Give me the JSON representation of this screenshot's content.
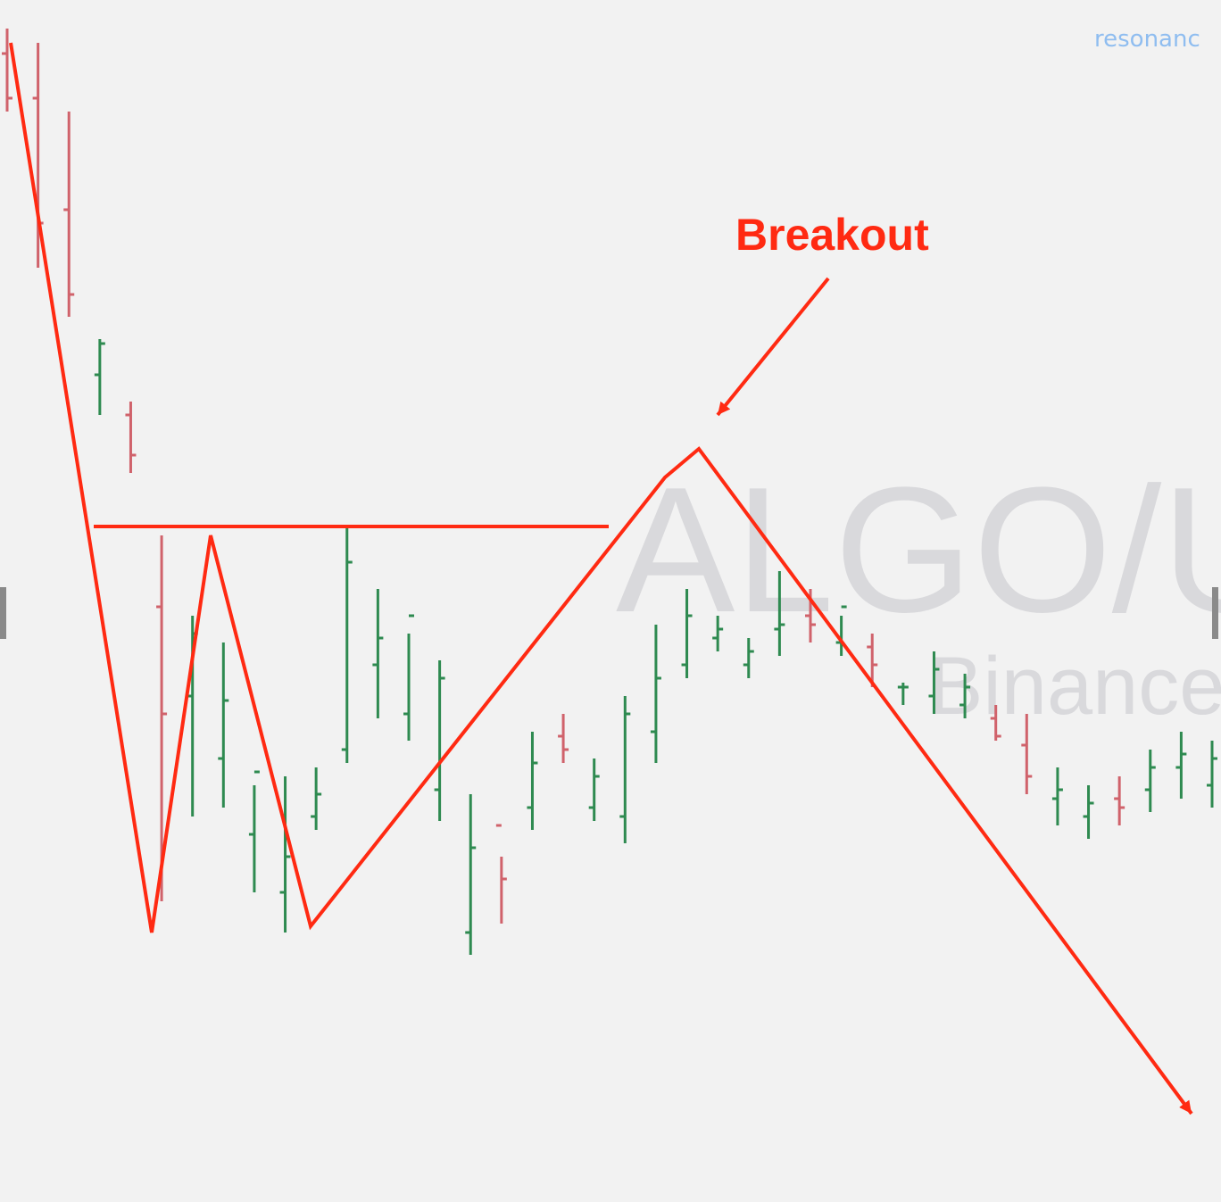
{
  "brand": {
    "text": "resonanc",
    "color": "#8fbdf0"
  },
  "watermark": {
    "ticker": "ALGO/U",
    "exchange": "Binance",
    "color": "#d9d9dc"
  },
  "annotation": {
    "label": "Breakout",
    "color": "#ff2a12"
  },
  "colors": {
    "up": "#2e8a50",
    "down": "#d0626b",
    "drawing": "#ff2a12",
    "background": "#f2f2f2"
  },
  "chart_data": {
    "type": "ohlc",
    "title": "",
    "xlabel": "",
    "ylabel": "",
    "ylim": [
      0,
      1342
    ],
    "grid": false,
    "price_scale": "unlabeled (values in chart vertical units, 0 = top)",
    "bars": [
      [
        32,
        125,
        60,
        110
      ],
      [
        48,
        300,
        110,
        250
      ],
      [
        125,
        355,
        235,
        330
      ],
      [
        380,
        465,
        420,
        385
      ],
      [
        450,
        530,
        465,
        510
      ],
      [
        600,
        1010,
        680,
        800
      ],
      [
        690,
        915,
        780,
        710
      ],
      [
        720,
        905,
        850,
        785
      ],
      [
        880,
        1000,
        935,
        865
      ],
      [
        870,
        1045,
        1000,
        960
      ],
      [
        860,
        930,
        915,
        890
      ],
      [
        590,
        855,
        840,
        630
      ],
      [
        660,
        805,
        745,
        715
      ],
      [
        710,
        830,
        800,
        690
      ],
      [
        740,
        920,
        885,
        760
      ],
      [
        890,
        1070,
        1045,
        950
      ],
      [
        960,
        1035,
        925,
        985
      ],
      [
        820,
        930,
        905,
        855
      ],
      [
        800,
        855,
        825,
        840
      ],
      [
        850,
        920,
        905,
        870
      ],
      [
        780,
        945,
        915,
        800
      ],
      [
        700,
        855,
        820,
        760
      ],
      [
        660,
        760,
        745,
        690
      ],
      [
        690,
        730,
        715,
        705
      ],
      [
        715,
        760,
        745,
        730
      ],
      [
        640,
        735,
        705,
        700
      ],
      [
        660,
        720,
        690,
        700
      ],
      [
        690,
        735,
        720,
        680
      ],
      [
        710,
        770,
        725,
        745
      ],
      [
        765,
        790,
        770,
        770
      ],
      [
        730,
        800,
        780,
        750
      ],
      [
        755,
        805,
        790,
        770
      ],
      [
        790,
        830,
        805,
        825
      ],
      [
        800,
        890,
        835,
        870
      ],
      [
        860,
        925,
        895,
        885
      ],
      [
        880,
        940,
        915,
        900
      ],
      [
        870,
        925,
        895,
        905
      ],
      [
        840,
        910,
        885,
        860
      ],
      [
        820,
        895,
        860,
        845
      ],
      [
        830,
        905,
        880,
        850
      ]
    ],
    "drawings": {
      "zigzag_points": [
        [
          12,
          48
        ],
        [
          170,
          1045
        ],
        [
          236,
          600
        ],
        [
          348,
          1038
        ],
        [
          745,
          535
        ],
        [
          783,
          503
        ],
        [
          1335,
          1248
        ]
      ],
      "resistance_line": {
        "y": 590,
        "x_from": 105,
        "x_to": 682
      },
      "breakout_arrow": {
        "from": [
          928,
          312
        ],
        "to": [
          804,
          465
        ]
      }
    }
  }
}
